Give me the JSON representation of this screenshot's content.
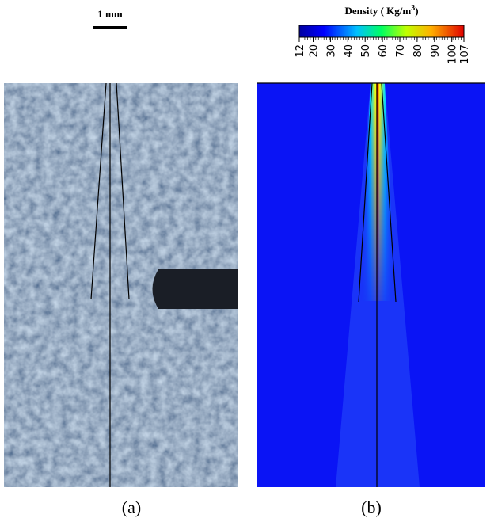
{
  "scale_bar": {
    "label": "1 mm"
  },
  "colorbar": {
    "title": "Density",
    "unit_prefix": "( Kg/m",
    "unit_exponent": "3",
    "unit_suffix": ")",
    "lim": [
      12,
      107
    ],
    "ticks": [
      12,
      20,
      30,
      40,
      50,
      60,
      70,
      80,
      90,
      100,
      107
    ]
  },
  "captions": [
    "(a)",
    "(b)"
  ]
}
